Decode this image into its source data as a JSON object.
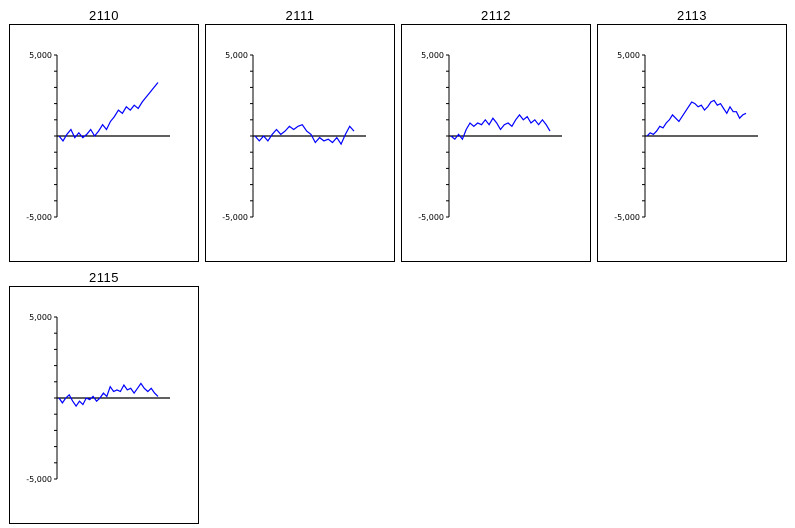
{
  "chart_data": [
    {
      "type": "line",
      "title": "2110",
      "ylim": [
        -5000,
        5000
      ],
      "yticks_labeled": [
        "5,000",
        "-5,000"
      ],
      "series": [
        {
          "color": "#0000ff",
          "values": [
            0,
            -300,
            100,
            400,
            -100,
            200,
            -100,
            100,
            400,
            0,
            300,
            700,
            400,
            900,
            1200,
            1600,
            1400,
            1800,
            1600,
            1900,
            1700,
            2100,
            2400,
            2700,
            3000,
            3300
          ]
        }
      ]
    },
    {
      "type": "line",
      "title": "2111",
      "ylim": [
        -5000,
        5000
      ],
      "yticks_labeled": [
        "5,000",
        "-5,000"
      ],
      "series": [
        {
          "color": "#0000ff",
          "values": [
            0,
            -300,
            0,
            -300,
            100,
            400,
            100,
            300,
            600,
            400,
            600,
            700,
            300,
            100,
            -400,
            -100,
            -300,
            -200,
            -400,
            -100,
            -500,
            100,
            600,
            300
          ]
        }
      ]
    },
    {
      "type": "line",
      "title": "2112",
      "ylim": [
        -5000,
        5000
      ],
      "yticks_labeled": [
        "5,000",
        "-5,000"
      ],
      "series": [
        {
          "color": "#0000ff",
          "values": [
            0,
            -200,
            100,
            -200,
            400,
            800,
            600,
            800,
            700,
            1000,
            700,
            1100,
            800,
            400,
            700,
            800,
            600,
            1000,
            1300,
            1000,
            1200,
            800,
            1000,
            700,
            1000,
            700,
            300
          ]
        }
      ]
    },
    {
      "type": "line",
      "title": "2113",
      "ylim": [
        -5000,
        5000
      ],
      "yticks_labeled": [
        "5,000",
        "-5,000"
      ],
      "series": [
        {
          "color": "#0000ff",
          "values": [
            0,
            200,
            100,
            300,
            600,
            500,
            800,
            1000,
            1300,
            1100,
            900,
            1200,
            1500,
            1800,
            2100,
            2000,
            1800,
            1900,
            1600,
            1800,
            2100,
            2200,
            1900,
            2000,
            1700,
            1400,
            1800,
            1500,
            1500,
            1100,
            1300,
            1400
          ]
        }
      ]
    },
    {
      "type": "line",
      "title": "2115",
      "ylim": [
        -5000,
        5000
      ],
      "yticks_labeled": [
        "5,000",
        "-5,000"
      ],
      "series": [
        {
          "color": "#0000ff",
          "values": [
            0,
            -300,
            0,
            200,
            -200,
            -500,
            -200,
            -400,
            0,
            -100,
            100,
            -200,
            0,
            300,
            100,
            700,
            400,
            500,
            400,
            800,
            500,
            600,
            300,
            600,
            900,
            600,
            400,
            600,
            300,
            100
          ]
        }
      ]
    }
  ]
}
